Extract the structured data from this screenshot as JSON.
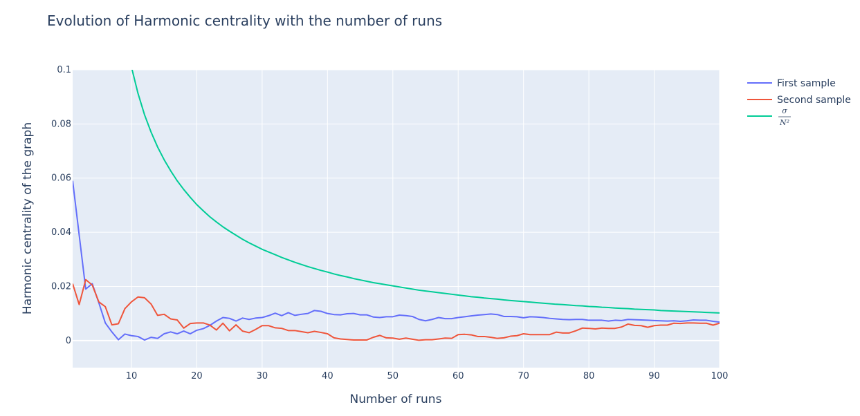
{
  "chart_data": {
    "type": "line",
    "title": "Evolution of Harmonic centrality with the number of runs",
    "xlabel": "Number of runs",
    "ylabel": "Harmonic centrality of the graph",
    "xlim": [
      1,
      100
    ],
    "ylim": [
      -0.01,
      0.1
    ],
    "x_ticks": [
      10,
      20,
      30,
      40,
      50,
      60,
      70,
      80,
      90,
      100
    ],
    "y_ticks": [
      0,
      0.02,
      0.04,
      0.06,
      0.08,
      0.1
    ],
    "y_tick_labels": [
      "0",
      "0.02",
      "0.04",
      "0.06",
      "0.08",
      "0.1"
    ],
    "grid": true,
    "legend_position": "top-right",
    "series": [
      {
        "name": "First sample",
        "color": "#636efa",
        "x_start": 1,
        "values": [
          0.059,
          0.039,
          0.019,
          0.021,
          0.014,
          0.0065,
          0.0032,
          0.0003,
          0.0024,
          0.0018,
          0.0015,
          0.0002,
          0.0012,
          0.0008,
          0.0025,
          0.0032,
          0.0025,
          0.0035,
          0.0025,
          0.0038,
          0.0044,
          0.0056,
          0.0072,
          0.0085,
          0.0082,
          0.0072,
          0.0083,
          0.0078,
          0.0083,
          0.0085,
          0.0092,
          0.0101,
          0.0092,
          0.0103,
          0.0093,
          0.0097,
          0.01,
          0.0111,
          0.0108,
          0.01,
          0.0096,
          0.0095,
          0.0099,
          0.01,
          0.0095,
          0.0095,
          0.0087,
          0.0085,
          0.0088,
          0.0088,
          0.0094,
          0.0092,
          0.0089,
          0.0078,
          0.0073,
          0.0078,
          0.0085,
          0.0081,
          0.0081,
          0.0085,
          0.0088,
          0.0091,
          0.0094,
          0.0096,
          0.0098,
          0.0096,
          0.0089,
          0.0089,
          0.0088,
          0.0084,
          0.0088,
          0.0087,
          0.0085,
          0.0082,
          0.008,
          0.0078,
          0.0077,
          0.0078,
          0.0078,
          0.0075,
          0.0075,
          0.0075,
          0.0072,
          0.0075,
          0.0074,
          0.0078,
          0.0077,
          0.0076,
          0.0075,
          0.0074,
          0.0073,
          0.0072,
          0.0073,
          0.0071,
          0.0073,
          0.0076,
          0.0075,
          0.0075,
          0.0071,
          0.0068
        ]
      },
      {
        "name": "Second sample",
        "color": "#ef553b",
        "x_start": 1,
        "values": [
          0.021,
          0.0133,
          0.0225,
          0.0205,
          0.0143,
          0.0125,
          0.0058,
          0.0062,
          0.0118,
          0.0143,
          0.0161,
          0.0158,
          0.0135,
          0.0093,
          0.0097,
          0.008,
          0.0076,
          0.0046,
          0.0063,
          0.0065,
          0.0065,
          0.0057,
          0.0039,
          0.0064,
          0.0036,
          0.0058,
          0.0035,
          0.0029,
          0.0041,
          0.0055,
          0.0055,
          0.0047,
          0.0045,
          0.0037,
          0.0037,
          0.0033,
          0.0029,
          0.0034,
          0.003,
          0.0025,
          0.001,
          0.0006,
          0.0004,
          0.0002,
          0.0002,
          0.0002,
          0.0012,
          0.0019,
          0.001,
          0.0009,
          0.0005,
          0.0009,
          0.0005,
          0.0001,
          0.0003,
          0.0003,
          0.0006,
          0.0009,
          0.0008,
          0.0022,
          0.0023,
          0.0021,
          0.0015,
          0.0015,
          0.0012,
          0.0008,
          0.001,
          0.0016,
          0.0018,
          0.0025,
          0.0022,
          0.0022,
          0.0022,
          0.0022,
          0.0031,
          0.0028,
          0.0028,
          0.0036,
          0.0046,
          0.0045,
          0.0043,
          0.0046,
          0.0045,
          0.0045,
          0.005,
          0.0061,
          0.0056,
          0.0055,
          0.0049,
          0.0055,
          0.0057,
          0.0057,
          0.0064,
          0.0063,
          0.0065,
          0.0065,
          0.0064,
          0.0064,
          0.0057,
          0.0064
        ]
      },
      {
        "name": "σ/N²",
        "legend_numerator": "σ",
        "legend_denominator": "N²",
        "color": "#00cc96",
        "x_start": 10,
        "values": [
          0.101,
          0.0913,
          0.0834,
          0.077,
          0.0715,
          0.0668,
          0.0627,
          0.059,
          0.0558,
          0.0529,
          0.0502,
          0.0479,
          0.0457,
          0.0438,
          0.042,
          0.0404,
          0.0389,
          0.0374,
          0.0361,
          0.0349,
          0.0337,
          0.0327,
          0.0317,
          0.0307,
          0.0298,
          0.0289,
          0.0281,
          0.0273,
          0.0266,
          0.0259,
          0.0253,
          0.0246,
          0.024,
          0.0235,
          0.0229,
          0.0224,
          0.0219,
          0.0214,
          0.021,
          0.0206,
          0.0202,
          0.0198,
          0.0194,
          0.019,
          0.0186,
          0.0183,
          0.018,
          0.0177,
          0.0174,
          0.0171,
          0.0168,
          0.0165,
          0.0162,
          0.016,
          0.0157,
          0.0155,
          0.0153,
          0.015,
          0.0148,
          0.0146,
          0.0144,
          0.0142,
          0.014,
          0.0138,
          0.0136,
          0.0134,
          0.0133,
          0.0131,
          0.0129,
          0.0128,
          0.0126,
          0.0125,
          0.0123,
          0.0122,
          0.012,
          0.0119,
          0.0118,
          0.0116,
          0.0115,
          0.0114,
          0.0113,
          0.0111,
          0.011,
          0.0109,
          0.0108,
          0.0107,
          0.0106,
          0.0105,
          0.0104,
          0.0103,
          0.0102
        ]
      }
    ]
  }
}
